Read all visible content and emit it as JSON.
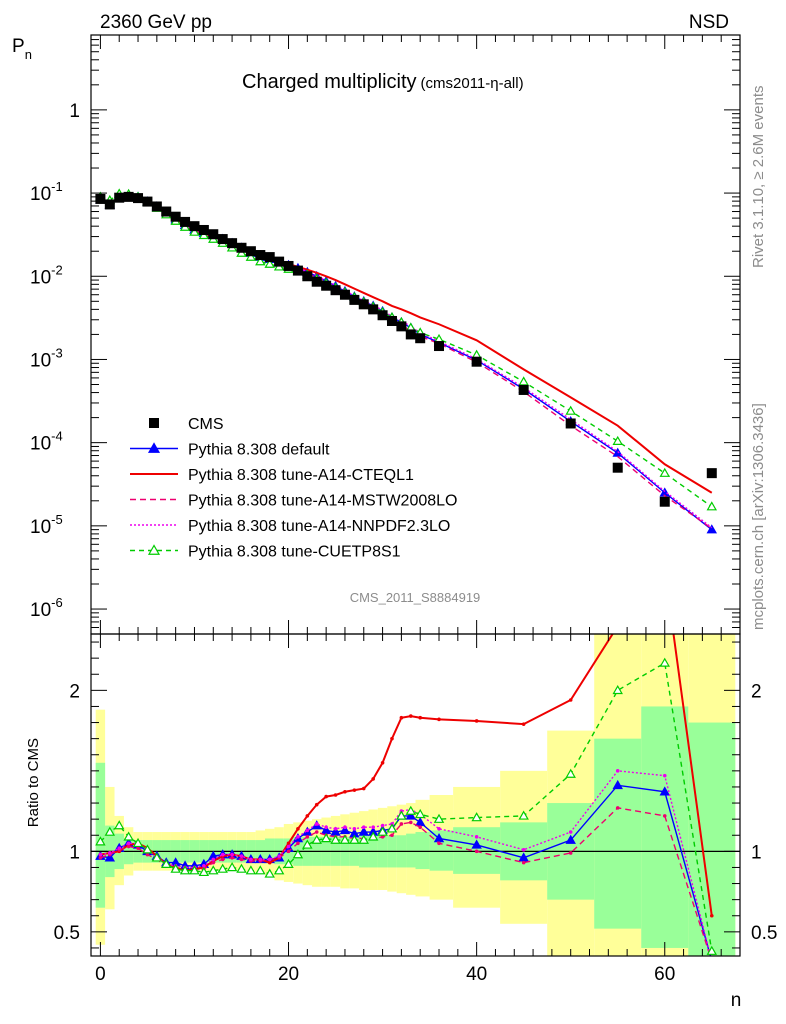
{
  "header": {
    "left": "2360 GeV pp",
    "right": "NSD"
  },
  "chart_data": {
    "type": "line",
    "title": "Charged multiplicity",
    "title_sub": "(cms2011-η-all)",
    "ylabel_main": "P",
    "ylabel_main_sub": "n",
    "ylabel_ratio": "Ratio to CMS",
    "xlabel": "n",
    "watermark_right": "Rivet 3.1.10, ≥ 2.6M events",
    "watermark_right2": "mcplots.cern.ch [arXiv:1306.3436]",
    "analysis_label": "CMS_2011_S8884919",
    "xlim": [
      -1,
      68
    ],
    "ylim_main_log10": [
      -6.3,
      0.9
    ],
    "ylim_ratio": [
      0.35,
      2.35
    ],
    "x_ticks": [
      0,
      20,
      40,
      60
    ],
    "y_main_ticks": [
      {
        "exp": 0,
        "label": "1"
      },
      {
        "exp": -1,
        "label": "10",
        "sup": "-1"
      },
      {
        "exp": -2,
        "label": "10",
        "sup": "-2"
      },
      {
        "exp": -3,
        "label": "10",
        "sup": "-3"
      },
      {
        "exp": -4,
        "label": "10",
        "sup": "-4"
      },
      {
        "exp": -5,
        "label": "10",
        "sup": "-5"
      },
      {
        "exp": -6,
        "label": "10",
        "sup": "-6"
      }
    ],
    "y_ratio_ticks": [
      {
        "v": 0.5,
        "label": "0.5"
      },
      {
        "v": 1,
        "label": "1"
      },
      {
        "v": 2,
        "label": "2"
      }
    ],
    "data": {
      "name": "CMS",
      "x": [
        0,
        1,
        2,
        3,
        4,
        5,
        6,
        7,
        8,
        9,
        10,
        11,
        12,
        13,
        14,
        15,
        16,
        17,
        18,
        19,
        20,
        21,
        22,
        23,
        24,
        25,
        26,
        27,
        28,
        29,
        30,
        31,
        32,
        33,
        34,
        36,
        40,
        45,
        50,
        55,
        60,
        65
      ],
      "y": [
        0.085,
        0.073,
        0.088,
        0.09,
        0.087,
        0.079,
        0.069,
        0.06,
        0.052,
        0.045,
        0.04,
        0.036,
        0.032,
        0.028,
        0.025,
        0.022,
        0.02,
        0.018,
        0.017,
        0.015,
        0.0133,
        0.0117,
        0.01,
        0.0086,
        0.0077,
        0.0068,
        0.006,
        0.0052,
        0.0046,
        0.004,
        0.0034,
        0.0029,
        0.0025,
        0.002,
        0.0018,
        0.00145,
        0.00094,
        0.00043,
        0.00017,
        5e-05,
        1.95e-05,
        4.3e-05
      ]
    },
    "bands": {
      "x": [
        -0.5,
        0.5,
        1.5,
        2.5,
        3.5,
        4.5,
        5.5,
        6.5,
        7.5,
        8.5,
        9.5,
        10.5,
        11.5,
        12.5,
        13.5,
        14.5,
        15.5,
        16.5,
        17.5,
        18.5,
        19.5,
        20.5,
        21.5,
        22.5,
        23.5,
        24.5,
        25.5,
        26.5,
        27.5,
        28.5,
        29.5,
        30.5,
        31.5,
        32.5,
        33.5,
        35,
        37.5,
        42.5,
        47.5,
        52.5,
        57.5,
        62.5,
        67.5
      ],
      "green_lo": [
        0.65,
        0.84,
        0.89,
        0.92,
        0.93,
        0.93,
        0.93,
        0.93,
        0.93,
        0.93,
        0.93,
        0.93,
        0.93,
        0.93,
        0.93,
        0.93,
        0.93,
        0.93,
        0.93,
        0.92,
        0.92,
        0.91,
        0.91,
        0.91,
        0.91,
        0.91,
        0.91,
        0.91,
        0.9,
        0.9,
        0.9,
        0.9,
        0.9,
        0.9,
        0.89,
        0.88,
        0.86,
        0.82,
        0.7,
        0.52,
        0.4,
        0.35
      ],
      "green_hi": [
        1.55,
        1.16,
        1.11,
        1.08,
        1.07,
        1.07,
        1.07,
        1.07,
        1.07,
        1.07,
        1.07,
        1.07,
        1.07,
        1.07,
        1.07,
        1.07,
        1.07,
        1.07,
        1.08,
        1.08,
        1.08,
        1.09,
        1.09,
        1.09,
        1.09,
        1.09,
        1.09,
        1.09,
        1.1,
        1.1,
        1.1,
        1.1,
        1.1,
        1.11,
        1.12,
        1.13,
        1.15,
        1.18,
        1.3,
        1.7,
        1.9,
        1.8
      ],
      "yellow_lo": [
        0.42,
        0.64,
        0.79,
        0.85,
        0.88,
        0.88,
        0.88,
        0.88,
        0.88,
        0.88,
        0.88,
        0.88,
        0.88,
        0.88,
        0.88,
        0.88,
        0.87,
        0.86,
        0.84,
        0.82,
        0.81,
        0.8,
        0.79,
        0.78,
        0.78,
        0.78,
        0.77,
        0.77,
        0.76,
        0.76,
        0.76,
        0.75,
        0.74,
        0.73,
        0.72,
        0.7,
        0.65,
        0.55,
        0.35,
        0.35,
        0.35,
        0.35
      ],
      "yellow_hi": [
        1.88,
        1.4,
        1.22,
        1.15,
        1.12,
        1.12,
        1.12,
        1.12,
        1.12,
        1.12,
        1.12,
        1.12,
        1.12,
        1.12,
        1.12,
        1.12,
        1.12,
        1.13,
        1.14,
        1.15,
        1.17,
        1.18,
        1.19,
        1.2,
        1.21,
        1.22,
        1.23,
        1.24,
        1.25,
        1.26,
        1.27,
        1.28,
        1.29,
        1.3,
        1.32,
        1.35,
        1.4,
        1.5,
        1.75,
        2.35,
        2.35,
        2.35
      ]
    },
    "series": [
      {
        "name": "Pythia 8.308 default",
        "color": "#0000ff",
        "dash": "",
        "marker": "triangle-filled",
        "x": [
          0,
          1,
          2,
          3,
          4,
          5,
          6,
          7,
          8,
          9,
          10,
          11,
          12,
          13,
          14,
          15,
          16,
          17,
          18,
          19,
          20,
          21,
          22,
          23,
          24,
          25,
          26,
          27,
          28,
          29,
          30,
          31,
          32,
          33,
          34,
          36,
          40,
          45,
          50,
          55,
          60,
          65
        ],
        "y": [
          0.083,
          0.072,
          0.09,
          0.094,
          0.09,
          0.079,
          0.069,
          0.058,
          0.048,
          0.041,
          0.036,
          0.033,
          0.031,
          0.028,
          0.025,
          0.022,
          0.019,
          0.017,
          0.016,
          0.0145,
          0.0136,
          0.0125,
          0.0112,
          0.01,
          0.0087,
          0.0076,
          0.0066,
          0.0057,
          0.005,
          0.0044,
          0.0038,
          0.0032,
          0.0028,
          0.0024,
          0.002,
          0.0016,
          0.00098,
          0.00044,
          0.00018,
          7.5e-05,
          2.5e-05,
          9e-06
        ],
        "ratio": [
          0.97,
          0.96,
          1.02,
          1.05,
          1.04,
          1.0,
          0.97,
          0.93,
          0.93,
          0.91,
          0.91,
          0.92,
          0.97,
          0.98,
          0.98,
          0.97,
          0.95,
          0.95,
          0.95,
          0.96,
          1.02,
          1.08,
          1.12,
          1.16,
          1.13,
          1.12,
          1.13,
          1.11,
          1.12,
          1.12,
          1.13,
          1.14,
          1.22,
          1.22,
          1.18,
          1.08,
          1.04,
          0.96,
          1.07,
          1.41,
          1.37,
          0.3
        ]
      },
      {
        "name": "Pythia 8.308 tune-A14-CTEQL1",
        "color": "#ee0000",
        "dash": "",
        "marker": "none",
        "x": [
          0,
          1,
          2,
          3,
          4,
          5,
          6,
          7,
          8,
          9,
          10,
          11,
          12,
          13,
          14,
          15,
          16,
          17,
          18,
          19,
          20,
          21,
          22,
          23,
          24,
          25,
          26,
          27,
          28,
          29,
          30,
          31,
          32,
          33,
          34,
          36,
          40,
          45,
          50,
          55,
          60,
          65
        ],
        "y": [
          0.084,
          0.072,
          0.089,
          0.093,
          0.089,
          0.078,
          0.068,
          0.057,
          0.047,
          0.04,
          0.035,
          0.032,
          0.03,
          0.027,
          0.024,
          0.021,
          0.019,
          0.017,
          0.016,
          0.015,
          0.014,
          0.013,
          0.012,
          0.011,
          0.01,
          0.009,
          0.008,
          0.0071,
          0.0063,
          0.0056,
          0.005,
          0.0044,
          0.004,
          0.0036,
          0.0032,
          0.00265,
          0.0017,
          0.00076,
          0.00035,
          0.00016,
          5.5e-05,
          2.5e-05
        ],
        "ratio": [
          0.98,
          0.99,
          1.0,
          1.04,
          1.05,
          1.02,
          0.97,
          0.92,
          0.9,
          0.88,
          0.89,
          0.9,
          0.94,
          0.97,
          0.98,
          0.97,
          0.95,
          0.95,
          0.93,
          0.96,
          1.05,
          1.14,
          1.22,
          1.29,
          1.34,
          1.35,
          1.37,
          1.38,
          1.39,
          1.45,
          1.55,
          1.7,
          1.83,
          1.84,
          1.83,
          1.82,
          1.81,
          1.79,
          1.94,
          2.4,
          3.0,
          0.6
        ]
      },
      {
        "name": "Pythia 8.308 tune-A14-MSTW2008LO",
        "color": "#ee0070",
        "dash": "6,4",
        "marker": "none",
        "x": [
          0,
          1,
          2,
          3,
          4,
          5,
          6,
          7,
          8,
          9,
          10,
          11,
          12,
          13,
          14,
          15,
          16,
          17,
          18,
          19,
          20,
          21,
          22,
          23,
          24,
          25,
          26,
          27,
          28,
          29,
          30,
          31,
          32,
          33,
          34,
          36,
          40,
          45,
          50,
          55,
          60,
          65
        ],
        "y": [
          0.082,
          0.071,
          0.089,
          0.093,
          0.089,
          0.078,
          0.068,
          0.057,
          0.047,
          0.04,
          0.035,
          0.032,
          0.03,
          0.027,
          0.024,
          0.021,
          0.019,
          0.017,
          0.0156,
          0.0143,
          0.0133,
          0.0122,
          0.0108,
          0.0096,
          0.0085,
          0.0074,
          0.0064,
          0.0055,
          0.0048,
          0.0042,
          0.0036,
          0.0031,
          0.0026,
          0.0022,
          0.0019,
          0.00155,
          0.00093,
          0.00041,
          0.00016,
          6.8e-05,
          2.3e-05,
          9.3e-06
        ],
        "ratio": [
          0.96,
          0.98,
          1.01,
          1.03,
          1.02,
          0.98,
          0.95,
          0.91,
          0.88,
          0.88,
          0.88,
          0.89,
          0.93,
          0.95,
          0.96,
          0.95,
          0.94,
          0.94,
          0.95,
          0.96,
          1.0,
          1.05,
          1.09,
          1.12,
          1.1,
          1.09,
          1.09,
          1.08,
          1.08,
          1.08,
          1.09,
          1.1,
          1.17,
          1.18,
          1.15,
          1.05,
          1.0,
          0.93,
          0.99,
          1.27,
          1.22,
          0.3
        ]
      },
      {
        "name": "Pythia 8.308 tune-A14-NNPDF2.3LO",
        "color": "#ee00ee",
        "dash": "2,2",
        "marker": "none",
        "x": [
          0,
          1,
          2,
          3,
          4,
          5,
          6,
          7,
          8,
          9,
          10,
          11,
          12,
          13,
          14,
          15,
          16,
          17,
          18,
          19,
          20,
          21,
          22,
          23,
          24,
          25,
          26,
          27,
          28,
          29,
          30,
          31,
          32,
          33,
          34,
          36,
          40,
          45,
          50,
          55,
          60,
          65
        ],
        "y": [
          0.083,
          0.072,
          0.09,
          0.094,
          0.09,
          0.079,
          0.069,
          0.058,
          0.048,
          0.041,
          0.036,
          0.033,
          0.031,
          0.028,
          0.025,
          0.022,
          0.019,
          0.017,
          0.0158,
          0.0147,
          0.0138,
          0.0127,
          0.0114,
          0.0102,
          0.0089,
          0.0078,
          0.0068,
          0.0058,
          0.0051,
          0.0045,
          0.0039,
          0.0033,
          0.0029,
          0.0025,
          0.0021,
          0.00165,
          0.00101,
          0.00046,
          0.00019,
          7.8e-05,
          2.6e-05,
          9.5e-06
        ],
        "ratio": [
          0.98,
          0.99,
          1.02,
          1.05,
          1.05,
          1.01,
          0.96,
          0.92,
          0.91,
          0.9,
          0.9,
          0.91,
          0.95,
          0.98,
          0.98,
          0.97,
          0.95,
          0.95,
          0.95,
          0.97,
          1.03,
          1.09,
          1.13,
          1.17,
          1.15,
          1.14,
          1.15,
          1.14,
          1.15,
          1.15,
          1.16,
          1.17,
          1.25,
          1.26,
          1.23,
          1.14,
          1.09,
          1.01,
          1.12,
          1.5,
          1.47,
          0.3
        ]
      },
      {
        "name": "Pythia 8.308 tune-CUETP8S1",
        "color": "#00cc00",
        "dash": "5,4",
        "marker": "triangle-open",
        "x": [
          0,
          1,
          2,
          3,
          4,
          5,
          6,
          7,
          8,
          9,
          10,
          11,
          12,
          13,
          14,
          15,
          16,
          17,
          18,
          19,
          20,
          21,
          22,
          23,
          24,
          25,
          26,
          27,
          28,
          29,
          30,
          31,
          32,
          33,
          34,
          36,
          40,
          45,
          50,
          55,
          60,
          65
        ],
        "y": [
          0.09,
          0.082,
          0.098,
          0.097,
          0.09,
          0.078,
          0.066,
          0.055,
          0.046,
          0.039,
          0.034,
          0.031,
          0.028,
          0.025,
          0.022,
          0.019,
          0.017,
          0.015,
          0.014,
          0.013,
          0.0122,
          0.0114,
          0.0104,
          0.0093,
          0.0083,
          0.0073,
          0.0064,
          0.0056,
          0.0049,
          0.0043,
          0.0037,
          0.0032,
          0.0028,
          0.0024,
          0.0021,
          0.00175,
          0.00113,
          0.00054,
          0.00024,
          0.000104,
          4.3e-05,
          1.7e-05
        ],
        "ratio": [
          1.06,
          1.12,
          1.16,
          1.09,
          1.05,
          1.01,
          0.96,
          0.92,
          0.89,
          0.88,
          0.88,
          0.87,
          0.88,
          0.89,
          0.9,
          0.89,
          0.88,
          0.88,
          0.86,
          0.88,
          0.92,
          0.98,
          1.04,
          1.07,
          1.08,
          1.07,
          1.07,
          1.07,
          1.07,
          1.09,
          1.12,
          1.14,
          1.22,
          1.25,
          1.23,
          1.2,
          1.21,
          1.22,
          1.48,
          2.0,
          2.17,
          0.38
        ]
      }
    ],
    "legend_placement": "bottom-left",
    "grid": false
  }
}
